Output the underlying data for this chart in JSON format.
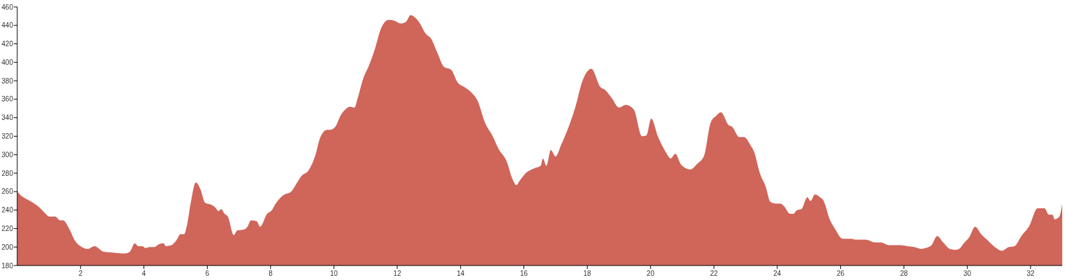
{
  "chart_data": {
    "type": "area",
    "xlim": [
      0,
      33
    ],
    "ylim": [
      180,
      460
    ],
    "xticks": [
      2,
      4,
      6,
      8,
      10,
      12,
      14,
      16,
      18,
      20,
      22,
      24,
      26,
      28,
      30,
      32
    ],
    "yticks": [
      180,
      200,
      220,
      240,
      260,
      280,
      300,
      320,
      340,
      360,
      380,
      400,
      420,
      440,
      460
    ],
    "x": [
      0,
      0.11,
      0.4,
      0.73,
      0.84,
      1.02,
      1.2,
      1.35,
      1.45,
      1.64,
      1.82,
      2.04,
      2.22,
      2.44,
      2.73,
      3.02,
      3.38,
      3.56,
      3.71,
      3.82,
      3.96,
      4.04,
      4.18,
      4.33,
      4.47,
      4.62,
      4.69,
      4.87,
      5.02,
      5.16,
      5.27,
      5.35,
      5.49,
      5.64,
      5.78,
      5.93,
      6.11,
      6.25,
      6.36,
      6.44,
      6.55,
      6.65,
      6.84,
      6.95,
      7.16,
      7.27,
      7.38,
      7.56,
      7.67,
      7.89,
      8.04,
      8.18,
      8.4,
      8.65,
      8.84,
      8.98,
      9.2,
      9.42,
      9.56,
      9.78,
      9.89,
      10.04,
      10.22,
      10.36,
      10.51,
      10.65,
      10.75,
      10.93,
      11.1,
      11.3,
      11.48,
      11.73,
      11.91,
      12.1,
      12.28,
      12.42,
      12.68,
      12.9,
      13.08,
      13.26,
      13.48,
      13.7,
      13.91,
      14.13,
      14.35,
      14.53,
      14.78,
      15.0,
      15.22,
      15.44,
      15.66,
      15.76,
      15.87,
      16.09,
      16.31,
      16.53,
      16.6,
      16.71,
      16.85,
      17.0,
      17.18,
      17.4,
      17.62,
      17.84,
      18.13,
      18.42,
      18.57,
      18.67,
      18.78,
      19.0,
      19.22,
      19.47,
      19.73,
      19.87,
      20.02,
      20.24,
      20.46,
      20.64,
      20.78,
      20.97,
      21.25,
      21.47,
      21.69,
      21.9,
      22.07,
      22.22,
      22.47,
      22.58,
      22.8,
      22.95,
      23.16,
      23.27,
      23.45,
      23.64,
      23.78,
      23.96,
      24.11,
      24.22,
      24.4,
      24.51,
      24.62,
      24.76,
      24.95,
      25.05,
      25.19,
      25.35,
      25.45,
      25.67,
      25.82,
      26.07,
      26.33,
      26.51,
      26.8,
      27.09,
      27.27,
      27.53,
      27.89,
      28.11,
      28.33,
      28.55,
      28.69,
      28.87,
      29.05,
      29.24,
      29.45,
      29.64,
      29.78,
      29.89,
      30.07,
      30.25,
      30.44,
      30.65,
      30.87,
      31.09,
      31.31,
      31.49,
      31.71,
      31.96,
      32.22,
      32.44,
      32.58,
      32.69,
      32.76,
      32.91,
      33.0
    ],
    "series": [
      {
        "color": "#d0655a",
        "values": [
          260,
          256,
          250,
          242,
          238,
          233,
          233,
          229,
          229,
          220,
          207,
          200,
          198,
          201,
          195,
          194,
          193,
          195,
          204,
          201,
          201,
          199,
          200,
          200,
          203,
          204,
          201,
          202,
          207,
          214,
          214,
          222,
          250,
          270,
          263,
          248,
          246,
          243,
          239,
          241,
          236,
          233,
          213,
          218,
          219,
          222,
          229,
          228,
          222,
          236,
          240,
          248,
          256,
          260,
          270,
          277,
          283,
          300,
          318,
          327,
          327,
          330,
          343,
          349,
          352,
          351,
          361,
          383,
          396,
          415,
          436,
          446,
          445,
          442,
          444,
          451,
          444,
          431,
          425,
          411,
          395,
          392,
          378,
          373,
          367,
          359,
          334,
          321,
          305,
          294,
          272,
          267,
          272,
          281,
          285,
          288,
          296,
          288,
          305,
          298,
          311,
          329,
          351,
          379,
          393,
          373,
          370,
          366,
          361,
          351,
          354,
          349,
          320,
          321,
          339,
          319,
          304,
          296,
          301,
          289,
          284,
          290,
          299,
          335,
          342,
          346,
          332,
          330,
          319,
          319,
          310,
          303,
          280,
          265,
          249,
          247,
          247,
          244,
          236,
          236,
          240,
          241,
          254,
          250,
          257,
          254,
          251,
          229,
          220,
          209,
          209,
          208,
          208,
          205,
          205,
          202,
          202,
          201,
          200,
          198,
          199,
          202,
          212,
          205,
          198,
          197,
          199,
          204,
          211,
          222,
          214,
          207,
          200,
          196,
          200,
          201,
          212,
          223,
          242,
          242,
          235,
          235,
          230,
          233,
          247
        ]
      }
    ]
  }
}
